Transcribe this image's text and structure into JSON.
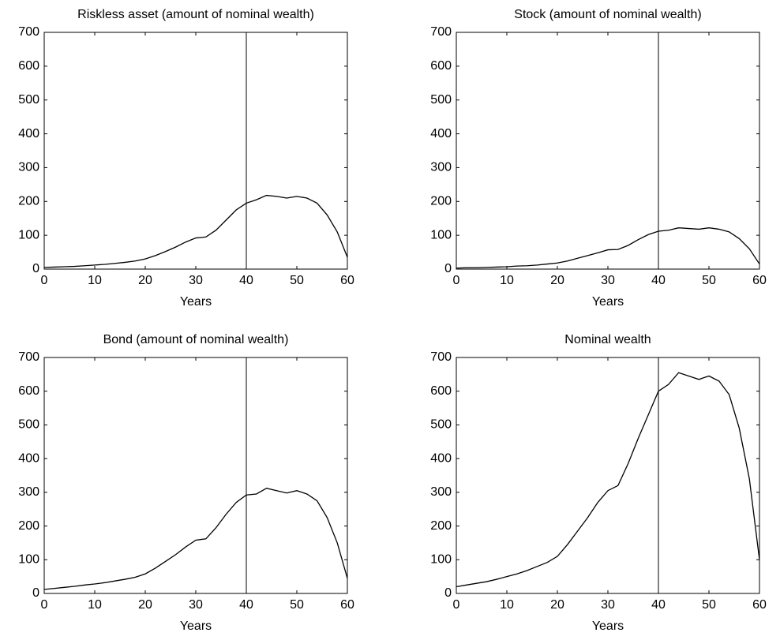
{
  "chart_data": [
    {
      "type": "line",
      "title": "Riskless asset (amount of nominal wealth)",
      "xlabel": "Years",
      "x": [
        0,
        2,
        4,
        6,
        8,
        10,
        12,
        14,
        16,
        18,
        20,
        22,
        24,
        26,
        28,
        30,
        32,
        34,
        36,
        38,
        40,
        42,
        44,
        46,
        48,
        50,
        52,
        54,
        56,
        58,
        60
      ],
      "values": [
        5,
        6,
        7,
        8,
        10,
        12,
        14,
        17,
        20,
        24,
        30,
        40,
        52,
        65,
        80,
        92,
        95,
        115,
        145,
        175,
        195,
        205,
        218,
        215,
        210,
        215,
        210,
        195,
        160,
        110,
        35
      ],
      "color": "#000000",
      "vline": 40,
      "xlim": [
        0,
        60
      ],
      "xticks": [
        0,
        10,
        20,
        30,
        40,
        50,
        60
      ],
      "ylim": [
        0,
        700
      ],
      "yticks": [
        0,
        100,
        200,
        300,
        400,
        500,
        600,
        700
      ]
    },
    {
      "type": "line",
      "title": "Stock (amount of nominal wealth)",
      "xlabel": "Years",
      "x": [
        0,
        2,
        4,
        6,
        8,
        10,
        12,
        14,
        16,
        18,
        20,
        22,
        24,
        26,
        28,
        30,
        32,
        34,
        36,
        38,
        40,
        42,
        44,
        46,
        48,
        50,
        52,
        54,
        56,
        58,
        60
      ],
      "values": [
        3,
        4,
        4,
        5,
        6,
        7,
        9,
        10,
        12,
        15,
        18,
        24,
        32,
        40,
        48,
        57,
        58,
        70,
        87,
        102,
        112,
        115,
        122,
        120,
        118,
        122,
        118,
        110,
        90,
        60,
        15
      ],
      "color": "#000000",
      "vline": 40,
      "xlim": [
        0,
        60
      ],
      "xticks": [
        0,
        10,
        20,
        30,
        40,
        50,
        60
      ],
      "ylim": [
        0,
        700
      ],
      "yticks": [
        0,
        100,
        200,
        300,
        400,
        500,
        600,
        700
      ]
    },
    {
      "type": "line",
      "title": "Bond (amount of nominal wealth)",
      "xlabel": "Years",
      "x": [
        0,
        2,
        4,
        6,
        8,
        10,
        12,
        14,
        16,
        18,
        20,
        22,
        24,
        26,
        28,
        30,
        32,
        34,
        36,
        38,
        40,
        42,
        44,
        46,
        48,
        50,
        52,
        54,
        56,
        58,
        60
      ],
      "values": [
        12,
        15,
        18,
        21,
        25,
        28,
        32,
        37,
        42,
        48,
        58,
        75,
        95,
        115,
        138,
        158,
        162,
        195,
        235,
        270,
        292,
        295,
        312,
        305,
        298,
        305,
        295,
        275,
        225,
        150,
        45
      ],
      "color": "#000000",
      "vline": 40,
      "xlim": [
        0,
        60
      ],
      "xticks": [
        0,
        10,
        20,
        30,
        40,
        50,
        60
      ],
      "ylim": [
        0,
        700
      ],
      "yticks": [
        0,
        100,
        200,
        300,
        400,
        500,
        600,
        700
      ]
    },
    {
      "type": "line",
      "title": "Nominal wealth",
      "xlabel": "Years",
      "x": [
        0,
        2,
        4,
        6,
        8,
        10,
        12,
        14,
        16,
        18,
        20,
        22,
        24,
        26,
        28,
        30,
        32,
        34,
        36,
        38,
        40,
        42,
        44,
        46,
        48,
        50,
        52,
        54,
        56,
        58,
        60
      ],
      "values": [
        20,
        25,
        30,
        35,
        42,
        50,
        58,
        68,
        80,
        92,
        110,
        145,
        185,
        225,
        270,
        305,
        320,
        385,
        460,
        530,
        600,
        620,
        655,
        645,
        635,
        645,
        630,
        590,
        490,
        340,
        100
      ],
      "color": "#000000",
      "vline": 40,
      "xlim": [
        0,
        60
      ],
      "xticks": [
        0,
        10,
        20,
        30,
        40,
        50,
        60
      ],
      "ylim": [
        0,
        700
      ],
      "yticks": [
        0,
        100,
        200,
        300,
        400,
        500,
        600,
        700
      ]
    }
  ]
}
